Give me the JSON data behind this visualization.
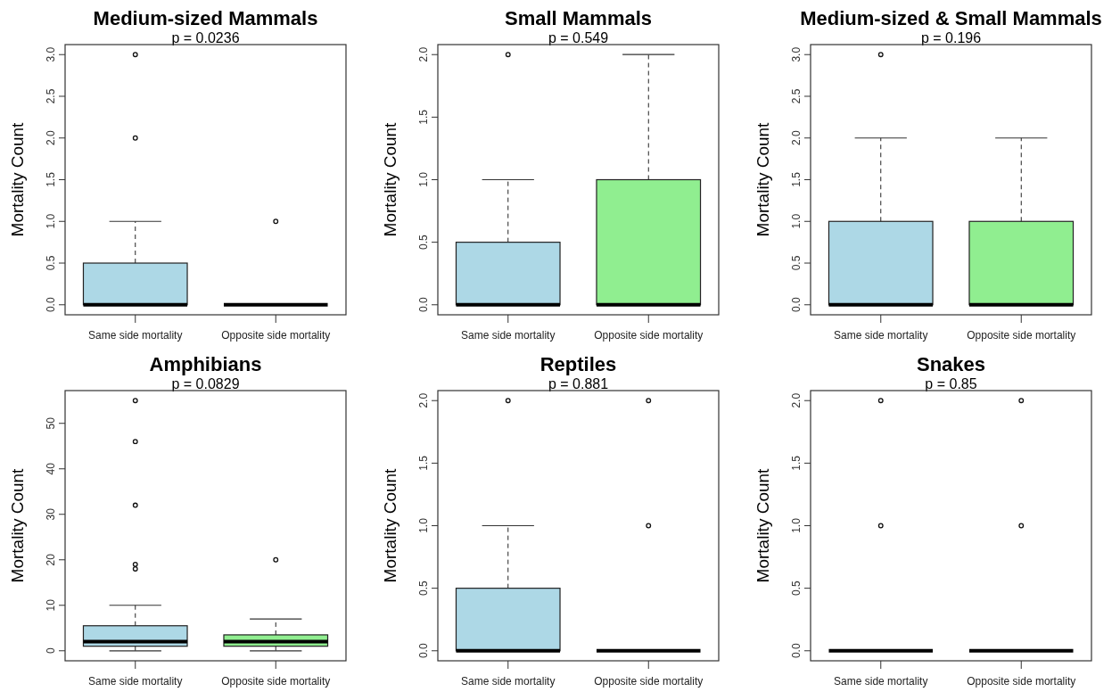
{
  "chart_data": [
    {
      "type": "box",
      "title": "Medium-sized Mammals",
      "subtitle": "p = 0.0236",
      "ylabel": "Mortality Count",
      "categories": [
        "Same side mortality",
        "Opposite side mortality"
      ],
      "colors": [
        "#add8e6",
        null
      ],
      "ylim": [
        -0.12,
        3.12
      ],
      "yticks": [
        {
          "value": 0,
          "label": "0.0"
        },
        {
          "value": 0.5,
          "label": "0.5"
        },
        {
          "value": 1,
          "label": "1.0"
        },
        {
          "value": 1.5,
          "label": "1.5"
        },
        {
          "value": 2,
          "label": "2.0"
        },
        {
          "value": 2.5,
          "label": "2.5"
        },
        {
          "value": 3,
          "label": "3.0"
        }
      ],
      "boxes": [
        {
          "low": 0,
          "q1": 0,
          "median": 0,
          "q3": 0.5,
          "high": 1,
          "outliers": [
            2,
            3
          ]
        },
        {
          "low": 0,
          "q1": 0,
          "median": 0,
          "q3": 0,
          "high": 0,
          "outliers": [
            1
          ]
        }
      ]
    },
    {
      "type": "box",
      "title": "Small Mammals",
      "subtitle": "p = 0.549",
      "ylabel": "Mortality Count",
      "categories": [
        "Same side mortality",
        "Opposite side mortality"
      ],
      "colors": [
        "#add8e6",
        "#90ee90"
      ],
      "ylim": [
        -0.08,
        2.08
      ],
      "yticks": [
        {
          "value": 0,
          "label": "0.0"
        },
        {
          "value": 0.5,
          "label": "0.5"
        },
        {
          "value": 1,
          "label": "1.0"
        },
        {
          "value": 1.5,
          "label": "1.5"
        },
        {
          "value": 2,
          "label": "2.0"
        }
      ],
      "boxes": [
        {
          "low": 0,
          "q1": 0,
          "median": 0,
          "q3": 0.5,
          "high": 1,
          "outliers": [
            2
          ]
        },
        {
          "low": 0,
          "q1": 0,
          "median": 0,
          "q3": 1,
          "high": 2
        }
      ]
    },
    {
      "type": "box",
      "title": "Medium-sized & Small Mammals",
      "subtitle": "p = 0.196",
      "ylabel": "Mortality Count",
      "categories": [
        "Same side mortality",
        "Opposite side mortality"
      ],
      "colors": [
        "#add8e6",
        "#90ee90"
      ],
      "ylim": [
        -0.12,
        3.12
      ],
      "yticks": [
        {
          "value": 0,
          "label": "0.0"
        },
        {
          "value": 0.5,
          "label": "0.5"
        },
        {
          "value": 1,
          "label": "1.0"
        },
        {
          "value": 1.5,
          "label": "1.5"
        },
        {
          "value": 2,
          "label": "2.0"
        },
        {
          "value": 2.5,
          "label": "2.5"
        },
        {
          "value": 3,
          "label": "3.0"
        }
      ],
      "boxes": [
        {
          "low": 0,
          "q1": 0,
          "median": 0,
          "q3": 1,
          "high": 2,
          "outliers": [
            3
          ]
        },
        {
          "low": 0,
          "q1": 0,
          "median": 0,
          "q3": 1,
          "high": 2
        }
      ]
    },
    {
      "type": "box",
      "title": "Amphibians",
      "subtitle": "p = 0.0829",
      "ylabel": "Mortality Count",
      "categories": [
        "Same side mortality",
        "Opposite side mortality"
      ],
      "colors": [
        "#add8e6",
        "#90ee90"
      ],
      "ylim": [
        -2.2,
        57.2
      ],
      "yticks": [
        0,
        10,
        20,
        30,
        40,
        50
      ],
      "boxes": [
        {
          "low": 0,
          "q1": 1,
          "median": 2,
          "q3": 5.5,
          "high": 10,
          "outliers": [
            18,
            19,
            32,
            46,
            55
          ]
        },
        {
          "low": 0,
          "q1": 1,
          "median": 2,
          "q3": 3.5,
          "high": 7,
          "outliers": [
            20
          ]
        }
      ]
    },
    {
      "type": "box",
      "title": "Reptiles",
      "subtitle": "p = 0.881",
      "ylabel": "Mortality Count",
      "categories": [
        "Same side mortality",
        "Opposite side mortality"
      ],
      "colors": [
        "#add8e6",
        null
      ],
      "ylim": [
        -0.08,
        2.08
      ],
      "yticks": [
        {
          "value": 0,
          "label": "0.0"
        },
        {
          "value": 0.5,
          "label": "0.5"
        },
        {
          "value": 1,
          "label": "1.0"
        },
        {
          "value": 1.5,
          "label": "1.5"
        },
        {
          "value": 2,
          "label": "2.0"
        }
      ],
      "boxes": [
        {
          "low": 0,
          "q1": 0,
          "median": 0,
          "q3": 0.5,
          "high": 1,
          "outliers": [
            2
          ]
        },
        {
          "low": 0,
          "q1": 0,
          "median": 0,
          "q3": 0,
          "high": 0,
          "outliers": [
            1,
            2
          ]
        }
      ]
    },
    {
      "type": "box",
      "title": "Snakes",
      "subtitle": "p = 0.85",
      "ylabel": "Mortality Count",
      "categories": [
        "Same side mortality",
        "Opposite side mortality"
      ],
      "ylim": [
        -0.08,
        2.08
      ],
      "yticks": [
        {
          "value": 0,
          "label": "0.0"
        },
        {
          "value": 0.5,
          "label": "0.5"
        },
        {
          "value": 1,
          "label": "1.0"
        },
        {
          "value": 1.5,
          "label": "1.5"
        },
        {
          "value": 2,
          "label": "2.0"
        }
      ],
      "boxes": [
        {
          "low": 0,
          "q1": 0,
          "median": 0,
          "q3": 0,
          "high": 0,
          "outliers": [
            1,
            2
          ]
        },
        {
          "low": 0,
          "q1": 0,
          "median": 0,
          "q3": 0,
          "high": 0,
          "outliers": [
            1,
            2
          ]
        }
      ]
    }
  ]
}
